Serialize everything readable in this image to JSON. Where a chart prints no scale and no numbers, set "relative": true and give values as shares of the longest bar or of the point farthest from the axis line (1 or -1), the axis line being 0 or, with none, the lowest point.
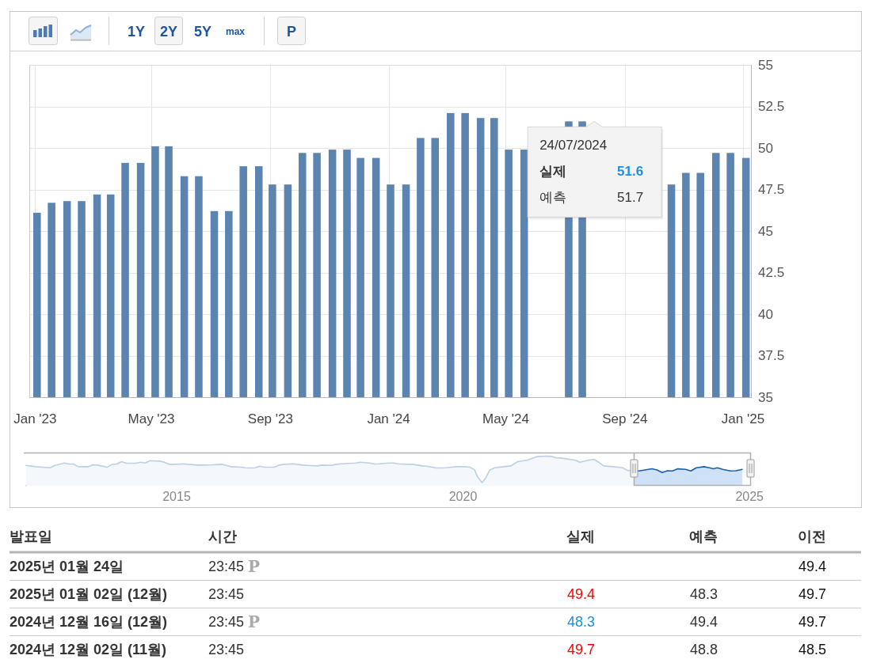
{
  "chart_data": [
    {
      "type": "bar",
      "color": "#5b84b1",
      "x": [
        "2023-01-03",
        "2023-01-18",
        "2023-02-03",
        "2023-02-18",
        "2023-03-06",
        "2023-03-20",
        "2023-04-04",
        "2023-04-20",
        "2023-05-05",
        "2023-05-19",
        "2023-06-04",
        "2023-06-19",
        "2023-07-05",
        "2023-07-20",
        "2023-08-04",
        "2023-08-20",
        "2023-09-03",
        "2023-09-19",
        "2023-10-04",
        "2023-10-19",
        "2023-11-04",
        "2023-11-19",
        "2023-12-03",
        "2023-12-19",
        "2024-01-03",
        "2024-01-19",
        "2024-02-03",
        "2024-02-18",
        "2024-03-05",
        "2024-03-20",
        "2024-04-05",
        "2024-04-19",
        "2024-05-04",
        "2024-05-20",
        "2024-06-04",
        "2024-06-19",
        "2024-07-05",
        "2024-07-19",
        "2024-08-04",
        "2024-08-19",
        "2024-09-03",
        "2024-09-19",
        "2024-10-04",
        "2024-10-19",
        "2024-11-03",
        "2024-11-18",
        "2024-12-04",
        "2024-12-19",
        "2025-01-04"
      ],
      "values": [
        46.1,
        46.7,
        46.8,
        46.8,
        47.2,
        47.2,
        49.1,
        49.1,
        50.1,
        50.1,
        48.3,
        48.3,
        46.2,
        46.2,
        48.9,
        48.9,
        47.8,
        47.8,
        49.7,
        49.7,
        49.9,
        49.9,
        49.4,
        49.4,
        47.8,
        47.8,
        50.6,
        50.6,
        52.1,
        52.1,
        51.8,
        51.8,
        49.9,
        49.9,
        null,
        null,
        51.6,
        51.6,
        null,
        null,
        null,
        null,
        null,
        47.8,
        48.5,
        48.5,
        49.7,
        49.7,
        49.4
      ],
      "xlim": [
        "2022-12-26",
        "2025-01-10"
      ],
      "xticks": [
        {
          "value": "2023-01",
          "label": "Jan '23"
        },
        {
          "value": "2023-05",
          "label": "May '23"
        },
        {
          "value": "2023-09",
          "label": "Sep '23"
        },
        {
          "value": "2024-01",
          "label": "Jan '24"
        },
        {
          "value": "2024-05",
          "label": "May '24"
        },
        {
          "value": "2024-09",
          "label": "Sep '24"
        },
        {
          "value": "2025-01",
          "label": "Jan '25"
        }
      ],
      "ylim": [
        35,
        55
      ],
      "yticks": [
        35,
        37.5,
        40,
        42.5,
        45,
        47.5,
        50,
        52.5,
        55
      ],
      "grid": true,
      "annotations": [
        "1Y",
        "2Y",
        "5Y",
        "max",
        "P",
        {
          "text": "24/07/2024",
          "x": "2024-07-24",
          "y": 51.6
        },
        "실제",
        "51.6",
        "예측",
        "51.7"
      ]
    },
    {
      "type": "area",
      "relative": true,
      "color": "#1c5ea8",
      "x": [
        "2012-05-15",
        "2012-07-15",
        "2012-10-15",
        "2012-11-15",
        "2013-01-15",
        "2013-02-15",
        "2013-03-15",
        "2013-04-15",
        "2013-06-15",
        "2013-07-15",
        "2013-08-15",
        "2013-10-15",
        "2013-11-15",
        "2013-12-15",
        "2014-01-15",
        "2014-02-15",
        "2014-04-15",
        "2014-05-15",
        "2014-06-15",
        "2014-07-15",
        "2014-09-15",
        "2014-10-15",
        "2014-11-15",
        "2014-12-15",
        "2015-02-15",
        "2015-03-15",
        "2015-05-15",
        "2015-06-15",
        "2015-08-15",
        "2015-10-15",
        "2015-11-15",
        "2015-12-15",
        "2016-02-15",
        "2016-03-15",
        "2016-04-15",
        "2016-05-15",
        "2016-06-15",
        "2016-07-15",
        "2016-09-15",
        "2016-10-15",
        "2016-11-15",
        "2017-01-15",
        "2017-03-15",
        "2017-04-15",
        "2017-06-15",
        "2017-07-15",
        "2017-09-15",
        "2017-10-15",
        "2017-11-15",
        "2018-02-15",
        "2018-03-15",
        "2018-05-15",
        "2018-06-15",
        "2018-07-15",
        "2018-09-15",
        "2018-10-15",
        "2018-11-15",
        "2019-01-15",
        "2019-02-15",
        "2019-04-15",
        "2019-05-15",
        "2019-07-15",
        "2019-09-15",
        "2019-10-15",
        "2019-11-15",
        "2020-01-15",
        "2020-02-15",
        "2020-03-15",
        "2020-04-01",
        "2020-05-01",
        "2020-05-26",
        "2020-06-20",
        "2020-07-22",
        "2020-09-15",
        "2020-10-31",
        "2020-12-15",
        "2021-02-15",
        "2021-04-15",
        "2021-06-15",
        "2021-07-15",
        "2021-08-15",
        "2021-09-15",
        "2021-12-15",
        "2022-01-15",
        "2022-03-15",
        "2022-04-15",
        "2022-05-15",
        "2022-06-15",
        "2022-08-15",
        "2022-10-15",
        "2022-11-15",
        "2023-01-26",
        "2023-04-20",
        "2023-05-22",
        "2023-06-24",
        "2023-07-27",
        "2023-08-28",
        "2023-10-01",
        "2023-11-20",
        "2023-12-24",
        "2024-01-27",
        "2024-03-17",
        "2024-04-20",
        "2024-05-15",
        "2024-06-10",
        "2024-07-14",
        "2024-09-02",
        "2024-10-06",
        "2024-11-15"
      ],
      "values": [
        0.65,
        0.6,
        0.56,
        0.65,
        0.74,
        0.7,
        0.7,
        0.6,
        0.6,
        0.67,
        0.66,
        0.58,
        0.69,
        0.7,
        0.79,
        0.73,
        0.73,
        0.77,
        0.74,
        0.83,
        0.81,
        0.77,
        0.69,
        0.69,
        0.71,
        0.69,
        0.66,
        0.66,
        0.67,
        0.69,
        0.65,
        0.6,
        0.58,
        0.56,
        0.55,
        0.56,
        0.62,
        0.58,
        0.58,
        0.66,
        0.69,
        0.71,
        0.66,
        0.65,
        0.63,
        0.66,
        0.65,
        0.69,
        0.71,
        0.74,
        0.77,
        0.74,
        0.7,
        0.71,
        0.74,
        0.74,
        0.71,
        0.69,
        0.69,
        0.63,
        0.62,
        0.55,
        0.56,
        0.58,
        0.6,
        0.6,
        0.58,
        0.48,
        0.23,
        0,
        0.19,
        0.48,
        0.56,
        0.6,
        0.63,
        0.79,
        0.85,
        0.98,
        1,
        0.99,
        0.94,
        0.93,
        0.85,
        0.77,
        0.85,
        0.88,
        0.77,
        0.63,
        0.6,
        0.56,
        0.46,
        0.44,
        0.52,
        0.48,
        0.38,
        0.45,
        0.44,
        0.52,
        0.5,
        0.44,
        0.56,
        0.6,
        0.56,
        0.52,
        0.56,
        0.5,
        0.44,
        0.45,
        0.5
      ],
      "xlim": [
        "2012-05-01",
        "2025-01-10"
      ],
      "xticks": [
        {
          "value": "2015",
          "label": "2015"
        },
        {
          "value": "2020",
          "label": "2020"
        },
        {
          "value": "2025",
          "label": "2025"
        }
      ],
      "bands": [
        {
          "axis": "x",
          "from": "2022-12-26",
          "to": "2025-01-10",
          "color": "#cfe1f7"
        }
      ]
    },
    {
      "type": "other",
      "categories": [
        "발표일",
        "시간",
        "실제",
        "예측",
        "이전"
      ],
      "y_categories": [
        "2025년 01월 24일",
        "2025년 01월 02일 (12월)",
        "2024년 12월 16일 (12월)",
        "2024년 12월 02일 (11월)"
      ],
      "cell_labels": [
        [
          "23:45 P",
          null,
          null,
          "49.4"
        ],
        [
          "23:45",
          "49.4",
          "48.3",
          "49.7"
        ],
        [
          "23:45 P",
          "48.3",
          "49.4",
          "49.7"
        ],
        [
          "23:45",
          "49.7",
          "48.8",
          "48.5"
        ]
      ],
      "colors": [
        null,
        "#ff0000",
        "#1a8fe6",
        "#ff0000"
      ]
    }
  ]
}
